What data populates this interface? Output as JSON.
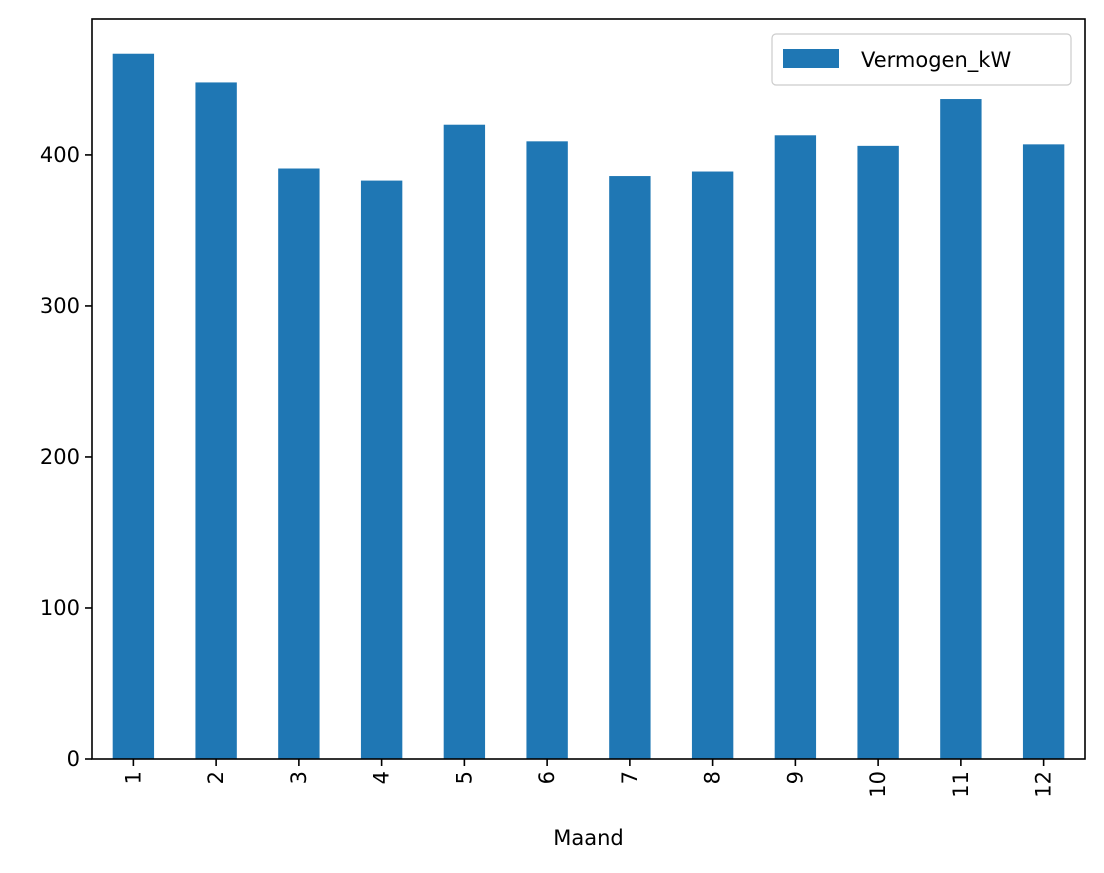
{
  "chart_data": {
    "type": "bar",
    "title": "",
    "xlabel": "Maand",
    "ylabel": "",
    "categories": [
      "1",
      "2",
      "3",
      "4",
      "5",
      "6",
      "7",
      "8",
      "9",
      "10",
      "11",
      "12"
    ],
    "series": [
      {
        "name": "Vermogen_kW",
        "color": "#1f77b4",
        "values": [
          467,
          448,
          391,
          383,
          420,
          409,
          386,
          389,
          413,
          406,
          437,
          407
        ]
      }
    ],
    "ylim": [
      0,
      490
    ],
    "yticks": [
      0,
      100,
      200,
      300,
      400
    ],
    "xtick_rotation": "vertical",
    "legend": "upper-right",
    "grid": false
  }
}
